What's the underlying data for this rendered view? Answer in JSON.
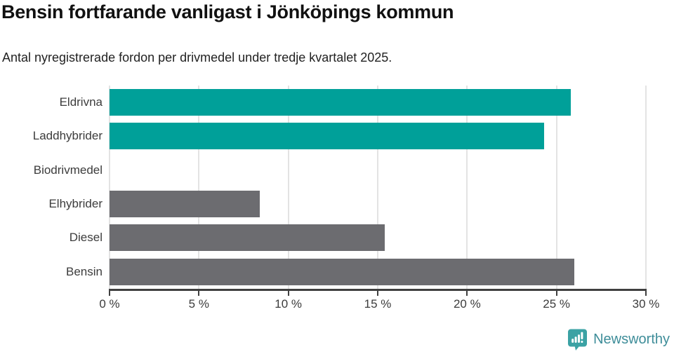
{
  "header": {
    "title": "Bensin fortfarande vanligast i Jönköpings kommun",
    "subtitle": "Antal nyregistrerade fordon per drivmedel under tredje kvartalet 2025."
  },
  "chart_data": {
    "type": "bar",
    "orientation": "horizontal",
    "title": "Bensin fortfarande vanligast i Jönköpings kommun",
    "subtitle": "Antal nyregistrerade fordon per drivmedel under tredje kvartalet 2025.",
    "categories": [
      "Eldrivna",
      "Laddhybrider",
      "Biodrivmedel",
      "Elhybrider",
      "Diesel",
      "Bensin"
    ],
    "values": [
      25.8,
      24.3,
      0,
      8.4,
      15.4,
      26.0
    ],
    "unit": "%",
    "bar_colors": [
      "#00A099",
      "#00A099",
      "#00A099",
      "#6C6C70",
      "#6C6C70",
      "#6C6C70"
    ],
    "xlim": [
      0,
      30
    ],
    "xticks": [
      0,
      5,
      10,
      15,
      20,
      25,
      30
    ],
    "xtick_labels": [
      "0 %",
      "5 %",
      "10 %",
      "15 %",
      "20 %",
      "25 %",
      "30 %"
    ],
    "grid": "vertical-only",
    "legend": "none",
    "colors": {
      "electric_teal": "#00A099",
      "fossil_gray": "#6C6C70",
      "axis": "#404040",
      "gridline": "#e3e3e3"
    }
  },
  "footer": {
    "brand": "Newsworthy",
    "logo_icon": "newsworthy-barchart-bubble-icon",
    "icon_color": "#3BA2A4",
    "text_color": "#3E8D99"
  }
}
